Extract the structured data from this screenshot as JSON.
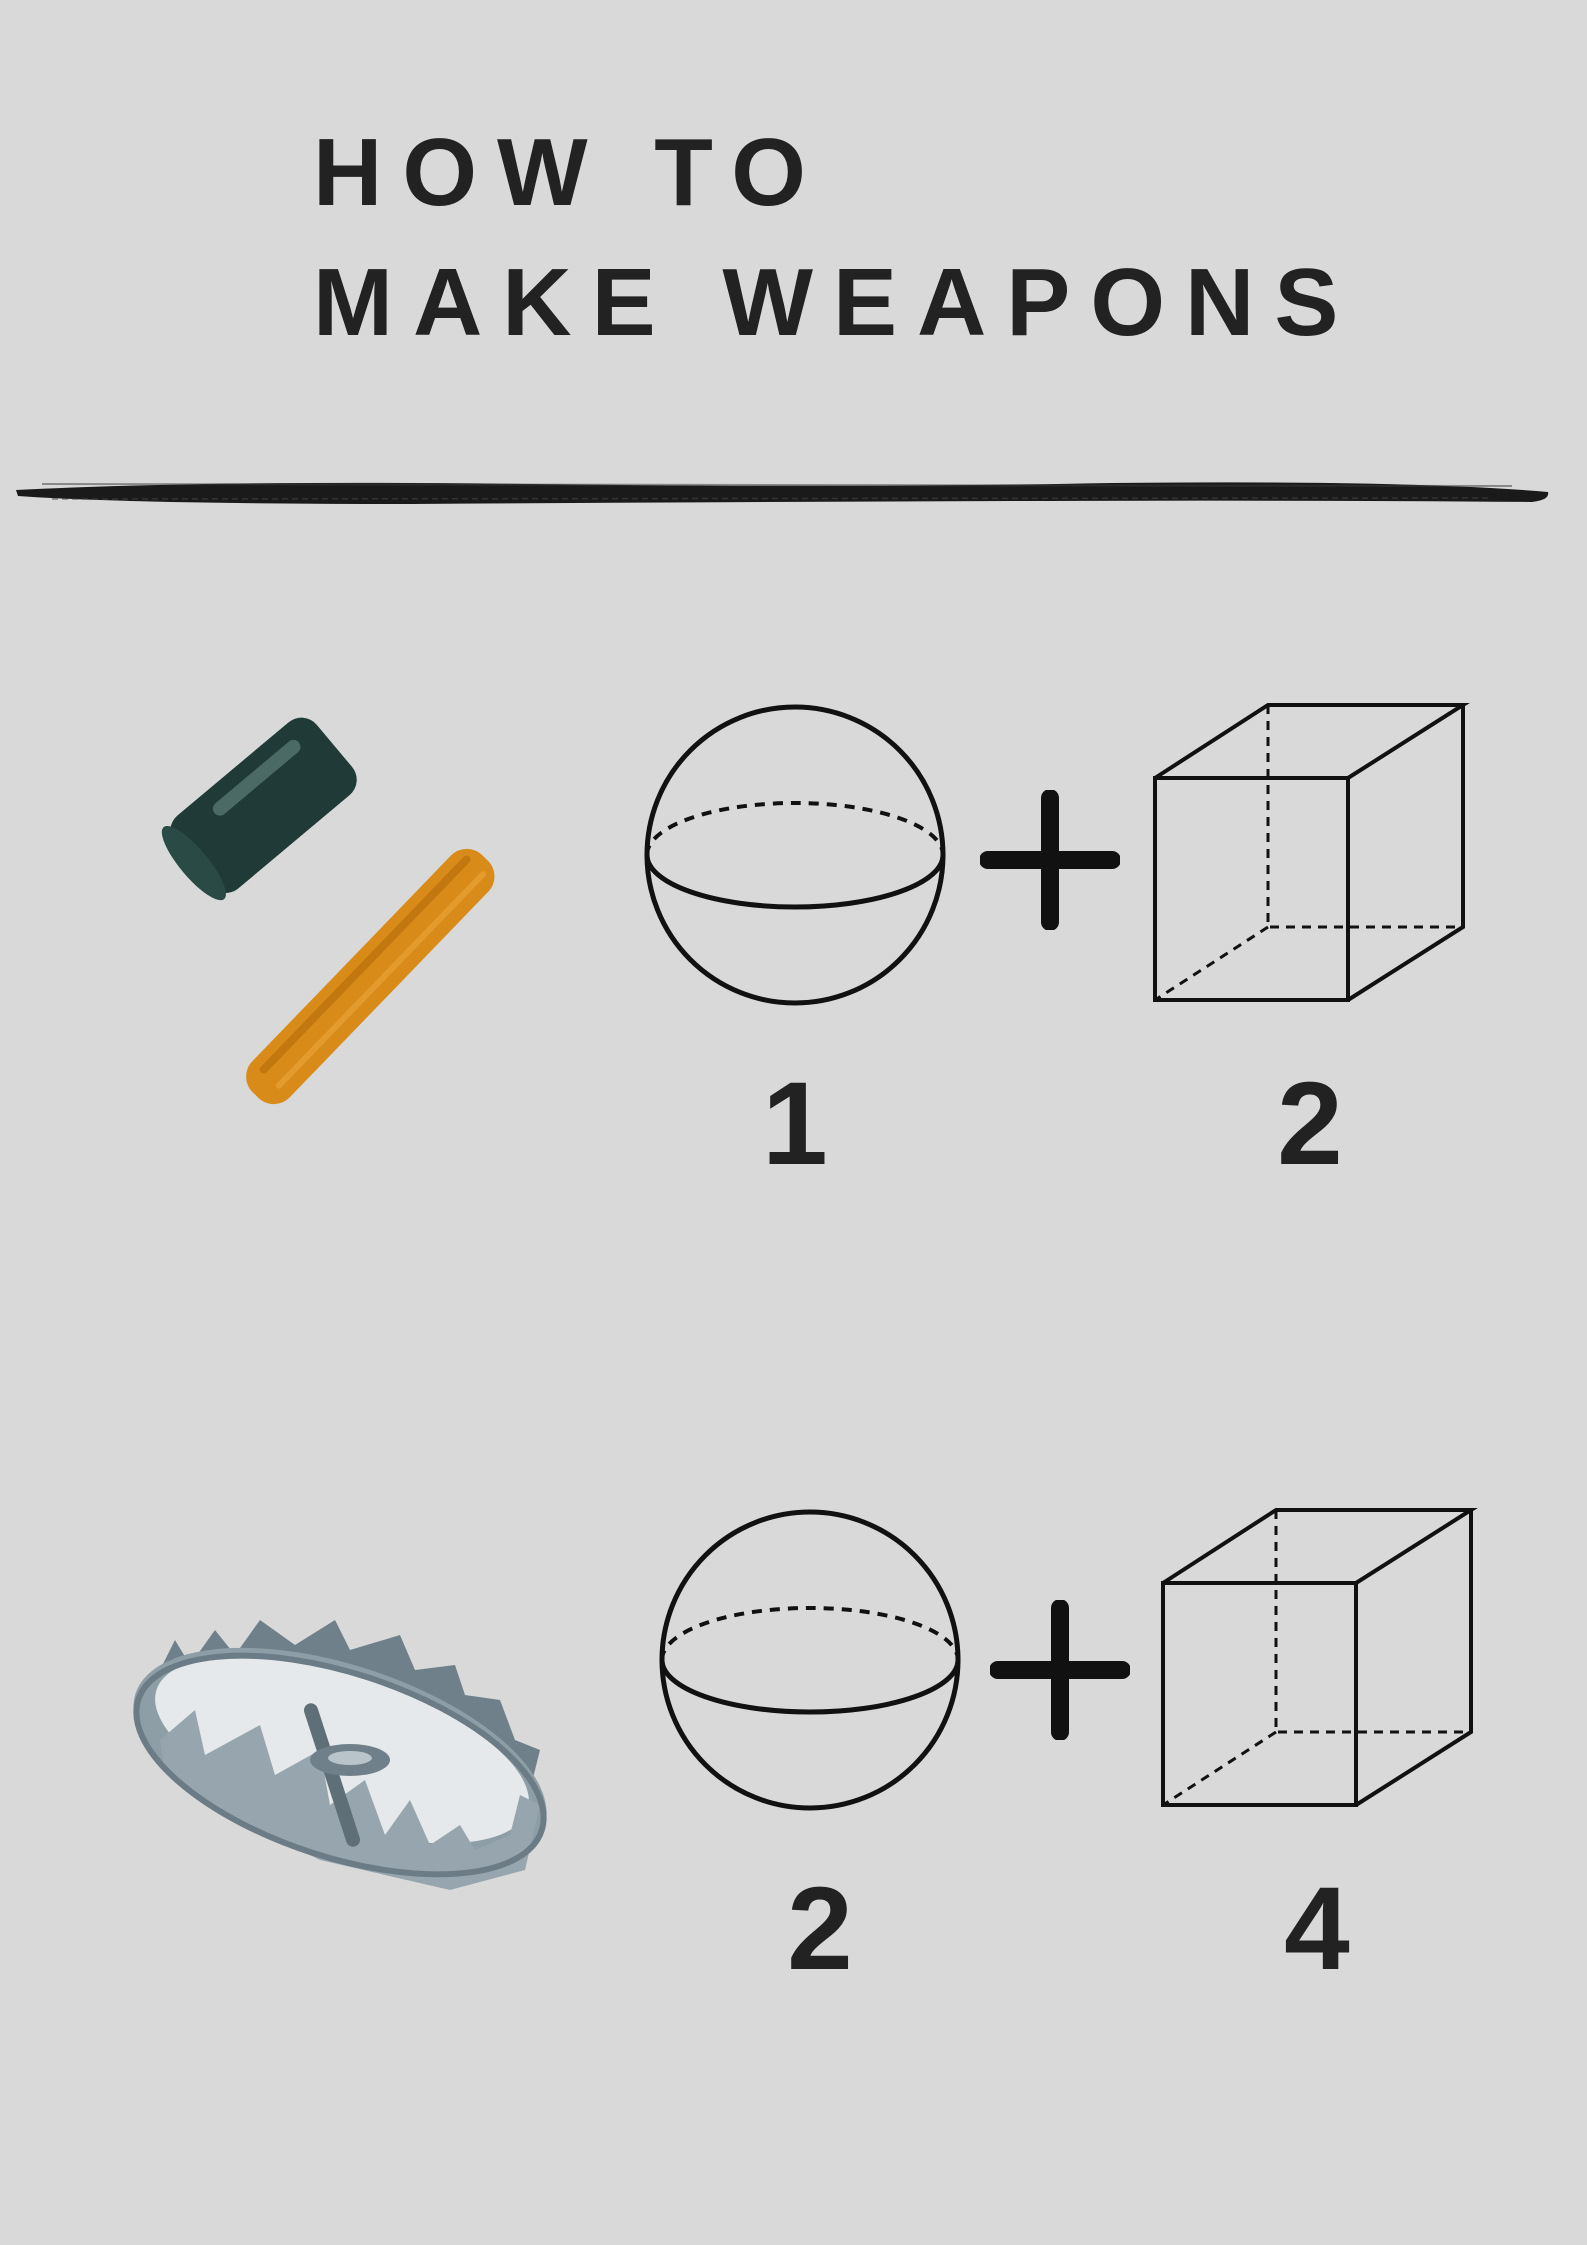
{
  "title": {
    "line1": "HOW TO",
    "line2": "MAKE WEAPONS"
  },
  "rows": [
    {
      "item_icon": "hammer-icon",
      "operator": "+",
      "shapes": [
        {
          "shape": "sphere-icon",
          "count": "1"
        },
        {
          "shape": "cube-icon",
          "count": "2"
        }
      ]
    },
    {
      "item_icon": "bear-trap-icon",
      "operator": "+",
      "shapes": [
        {
          "shape": "sphere-icon",
          "count": "2"
        },
        {
          "shape": "cube-icon",
          "count": "4"
        }
      ]
    }
  ],
  "colors": {
    "background": "#d9d9d9",
    "text": "#222222",
    "hammer_head": "#1f3a37",
    "hammer_handle": "#d98b1a",
    "trap_metal": "#7f8f99"
  }
}
